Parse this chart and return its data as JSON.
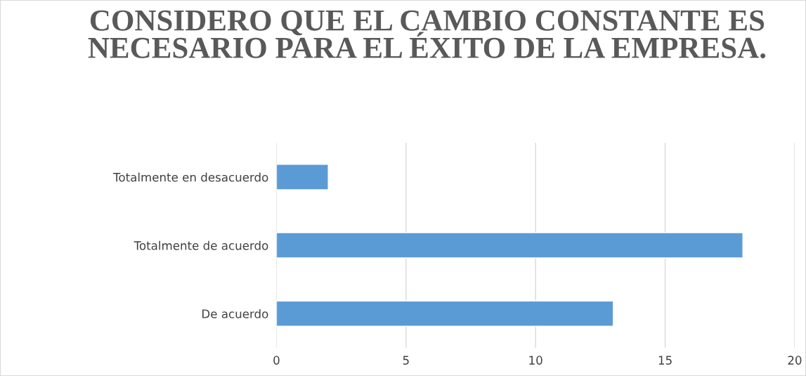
{
  "chart_data": {
    "type": "bar",
    "orientation": "horizontal",
    "title": "CONSIDERO QUE EL CAMBIO CONSTANTE ES NECESARIO PARA EL ÉXITO DE LA EMPRESA.",
    "categories": [
      "Totalmente en desacuerdo",
      "Totalmente de acuerdo",
      "De acuerdo"
    ],
    "values": [
      2,
      18,
      13
    ],
    "color": "#5b9bd5",
    "xlim": [
      0,
      20
    ],
    "xticks": [
      0,
      5,
      10,
      15,
      20
    ],
    "grid": "x",
    "legend": false
  }
}
